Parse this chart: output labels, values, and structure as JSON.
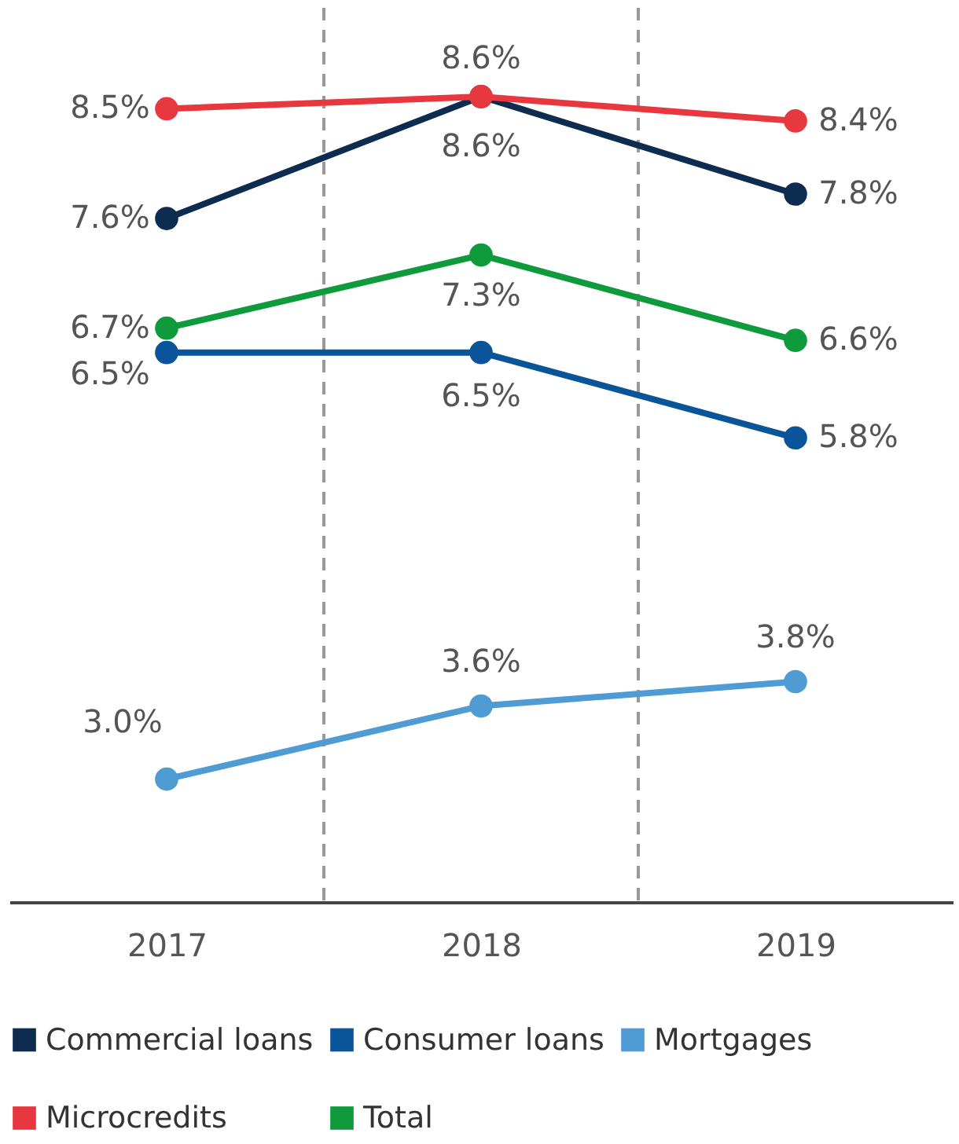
{
  "chart_data": {
    "type": "line",
    "x": [
      2017,
      2018,
      2019
    ],
    "xlim": [
      2016.5,
      2019.5
    ],
    "xticks": [
      2017,
      2018,
      2019
    ],
    "tick_labels": "x",
    "series": [
      {
        "name": "Commercial loans",
        "color": "#0d2c4f",
        "values": [
          7.6,
          8.6,
          7.8
        ],
        "value_labels": [
          "7.6%",
          "8.6%",
          "7.8%"
        ]
      },
      {
        "name": "Consumer loans",
        "color": "#0a5499",
        "values": [
          6.5,
          6.5,
          5.8
        ],
        "value_labels": [
          "6.5%",
          "6.5%",
          "5.8%"
        ]
      },
      {
        "name": "Mortgages",
        "color": "#4f9bd4",
        "values": [
          3.0,
          3.6,
          3.8
        ],
        "value_labels": [
          "3.0%",
          "3.6%",
          "3.8%"
        ]
      },
      {
        "name": "Microcredits",
        "color": "#e8383f",
        "values": [
          8.5,
          8.6,
          8.4
        ],
        "value_labels": [
          "8.5%",
          "8.6%",
          "8.4%"
        ]
      },
      {
        "name": "Total",
        "color": "#0f9a3c",
        "values": [
          6.7,
          7.3,
          6.6
        ],
        "value_labels": [
          "6.7%",
          "7.3%",
          "6.6%"
        ]
      }
    ],
    "ref_lines": [
      {
        "axis": "x",
        "value": 2017.5,
        "color": "#999999",
        "line_style": "dashed"
      },
      {
        "axis": "x",
        "value": 2018.5,
        "color": "#999999",
        "line_style": "dashed"
      }
    ],
    "marker": "circle",
    "line_style": "solid",
    "legend": "bottom"
  }
}
